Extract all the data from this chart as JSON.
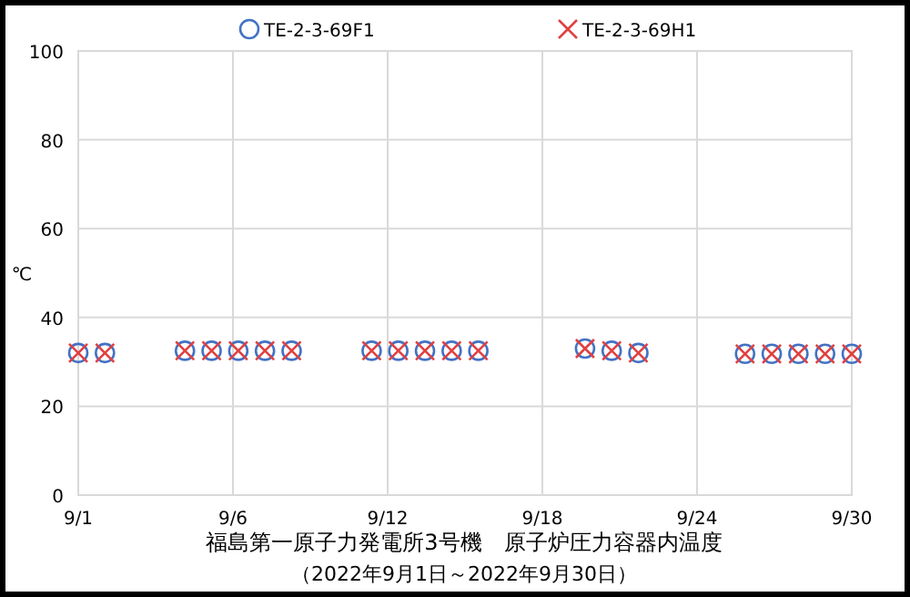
{
  "chart_data": {
    "type": "scatter",
    "title": "福島第一原子力発電所3号機　原子炉圧力容器内温度",
    "subtitle": "（2022年9月1日～2022年9月30日）",
    "ylabel": "℃",
    "x": [
      "2022-09-01",
      "2022-09-02",
      "2022-09-05",
      "2022-09-06",
      "2022-09-07",
      "2022-09-08",
      "2022-09-09",
      "2022-09-12",
      "2022-09-13",
      "2022-09-14",
      "2022-09-15",
      "2022-09-16",
      "2022-09-20",
      "2022-09-21",
      "2022-09-22",
      "2022-09-26",
      "2022-09-27",
      "2022-09-28",
      "2022-09-29",
      "2022-09-30"
    ],
    "series": [
      {
        "name": "TE-2-3-69F1",
        "color": "#4472c4",
        "marker": "circle",
        "values": [
          32,
          32,
          32.5,
          32.5,
          32.5,
          32.5,
          32.5,
          32.5,
          32.5,
          32.5,
          32.5,
          32.5,
          33,
          32.5,
          32,
          31.8,
          31.8,
          31.8,
          31.8,
          31.8
        ]
      },
      {
        "name": "TE-2-3-69H1",
        "color": "#e04040",
        "marker": "cross",
        "values": [
          32,
          32,
          32.5,
          32.5,
          32.5,
          32.5,
          32.5,
          32.5,
          32.5,
          32.5,
          32.5,
          32.5,
          33,
          32.5,
          32,
          31.8,
          31.8,
          31.8,
          31.8,
          31.8
        ]
      }
    ],
    "xlim": [
      "2022-09-01",
      "2022-09-30"
    ],
    "xticks": [
      {
        "value": "2022-09-01",
        "label": "9/1"
      },
      {
        "value": "2022-09-06T19:12",
        "label": "9/6"
      },
      {
        "value": "2022-09-12T14:24",
        "label": "9/12"
      },
      {
        "value": "2022-09-18T09:36",
        "label": "9/18"
      },
      {
        "value": "2022-09-24T04:48",
        "label": "9/24"
      },
      {
        "value": "2022-09-30",
        "label": "9/30"
      }
    ],
    "ylim": [
      0,
      100
    ],
    "yticks": [
      0,
      20,
      40,
      60,
      80,
      100
    ],
    "grid": true,
    "legend": "top"
  }
}
